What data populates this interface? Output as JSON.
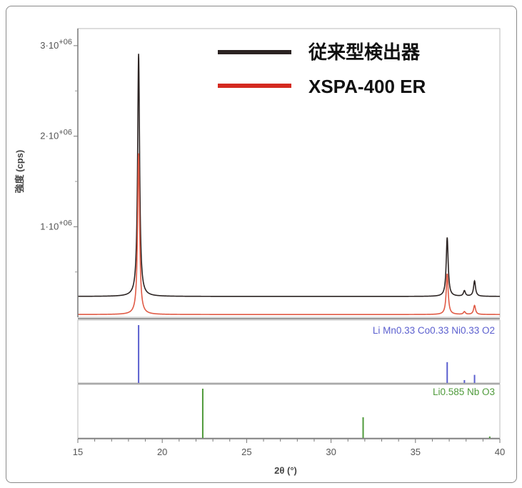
{
  "chart_data": [
    {
      "type": "line",
      "xlabel": "2θ (°)",
      "ylabel": "強度 (cps)",
      "xlim": [
        15,
        40
      ],
      "ylim": [
        0,
        3200000
      ],
      "xticks": [
        "15",
        "20",
        "25",
        "30",
        "35",
        "40"
      ],
      "yticks": [
        {
          "value": 1000000,
          "mantissa": "1·10",
          "exp": "+06"
        },
        {
          "value": 2000000,
          "mantissa": "2·10",
          "exp": "+06"
        },
        {
          "value": 3000000,
          "mantissa": "3·10",
          "exp": "+06"
        }
      ],
      "legend_position": "top-right",
      "series": [
        {
          "name": "従来型検出器",
          "color": "#2b2322",
          "baseline": 230000,
          "peaks": [
            {
              "x": 18.6,
              "y": 2910000
            },
            {
              "x": 36.88,
              "y": 880000
            },
            {
              "x": 37.9,
              "y": 290000
            },
            {
              "x": 38.5,
              "y": 400000
            }
          ]
        },
        {
          "name": "XSPA-400 ER",
          "color": "#e05a45",
          "baseline": 30000,
          "peaks": [
            {
              "x": 18.6,
              "y": 1810000
            },
            {
              "x": 36.88,
              "y": 480000
            },
            {
              "x": 37.9,
              "y": 60000
            },
            {
              "x": 38.5,
              "y": 130000
            }
          ]
        }
      ],
      "legend_line_colors": [
        "#2b2322",
        "#d42a20"
      ]
    },
    {
      "type": "bar",
      "title": "Li Mn0.33 Co0.33 Ni0.33 O2",
      "color": "#5b5fcf",
      "x": [
        18.6,
        36.88,
        37.9,
        38.5
      ],
      "values": [
        100,
        36,
        5,
        14
      ]
    },
    {
      "type": "bar",
      "title": "Li0.585 Nb O3",
      "color": "#4e9a3a",
      "x": [
        22.4,
        31.9,
        39.4
      ],
      "values": [
        100,
        42,
        3
      ]
    }
  ]
}
